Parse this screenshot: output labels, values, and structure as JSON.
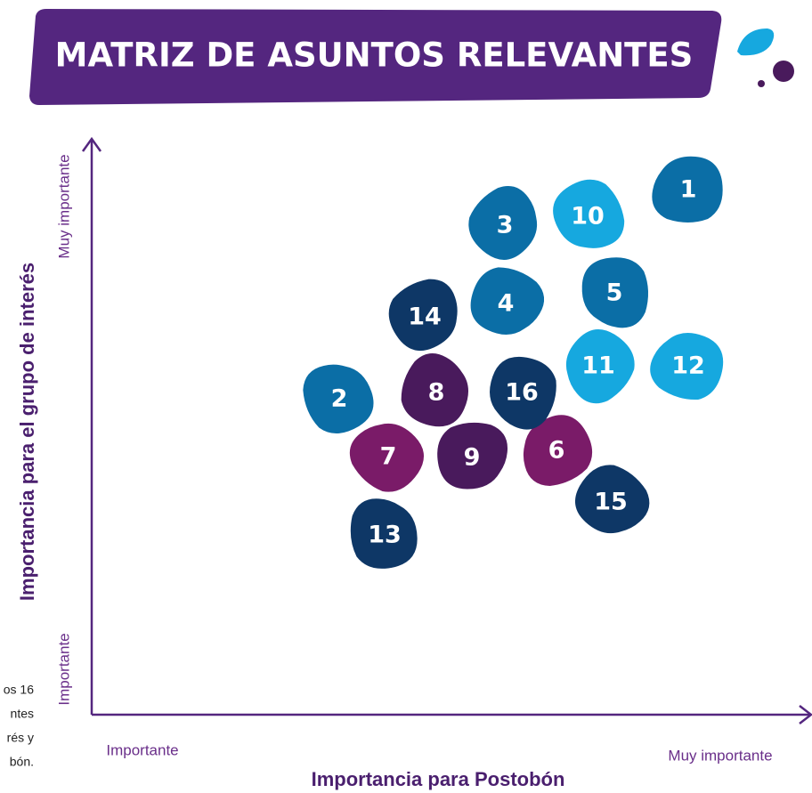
{
  "title": "MATRIZ DE ASUNTOS RELEVANTES",
  "y_axis": {
    "title": "Importancia para el grupo de interés",
    "high": "Muy importante",
    "low": "Importante"
  },
  "x_axis": {
    "title": "Importancia para Postobón",
    "low": "Importante",
    "high": "Muy importante"
  },
  "side_note": [
    "os 16",
    "ntes",
    "rés y",
    "bón."
  ],
  "nodes": [
    {
      "label": "1",
      "color": "#0b6ea6"
    },
    {
      "label": "2",
      "color": "#0b6ea6"
    },
    {
      "label": "3",
      "color": "#0b6ea6"
    },
    {
      "label": "4",
      "color": "#0b6ea6"
    },
    {
      "label": "5",
      "color": "#0b6ea6"
    },
    {
      "label": "6",
      "color": "#7a1b68"
    },
    {
      "label": "7",
      "color": "#7a1b68"
    },
    {
      "label": "8",
      "color": "#491a5c"
    },
    {
      "label": "9",
      "color": "#491a5c"
    },
    {
      "label": "10",
      "color": "#16a8df"
    },
    {
      "label": "11",
      "color": "#16a8df"
    },
    {
      "label": "12",
      "color": "#16a8df"
    },
    {
      "label": "13",
      "color": "#0e3766"
    },
    {
      "label": "14",
      "color": "#0e3766"
    },
    {
      "label": "15",
      "color": "#0e3766"
    },
    {
      "label": "16",
      "color": "#0e3766"
    }
  ]
}
